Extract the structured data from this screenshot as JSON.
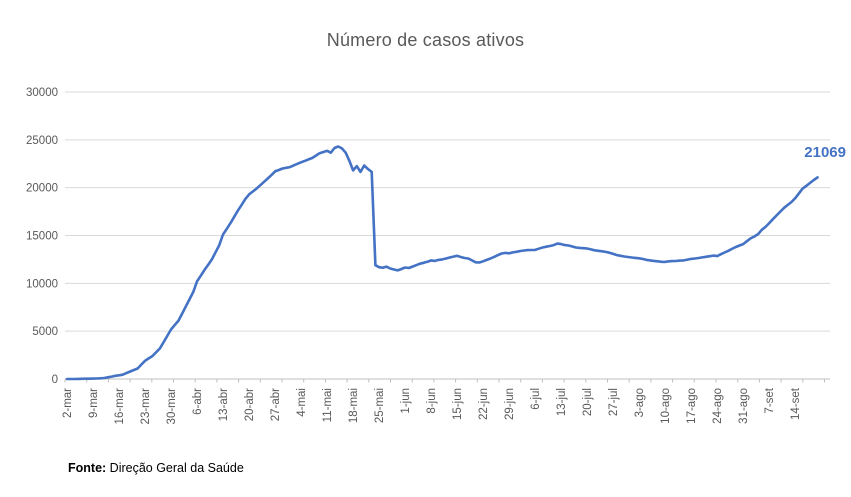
{
  "chart_data": {
    "type": "line",
    "title": "Número de casos ativos",
    "xlabel": "",
    "ylabel": "",
    "legend": "none",
    "grid": "horizontal",
    "ylim": [
      0,
      30000
    ],
    "y_ticks": [
      0,
      5000,
      10000,
      15000,
      20000,
      25000,
      30000
    ],
    "y_tick_labels": [
      "0",
      "5000",
      "10000",
      "15000",
      "20000",
      "25000",
      "30000"
    ],
    "x_tick_labels": [
      "2-mar",
      "9-mar",
      "16-mar",
      "23-mar",
      "30-mar",
      "6-abr",
      "13-abr",
      "20-abr",
      "27-abr",
      "4-mai",
      "11-mai",
      "18-mai",
      "25-mai",
      "1-jun",
      "8-jun",
      "15-jun",
      "22-jun",
      "29-jun",
      "6-jul",
      "13-jul",
      "20-jul",
      "27-jul",
      "3-ago",
      "10-ago",
      "17-ago",
      "24-ago",
      "31-ago",
      "7-set",
      "14-set"
    ],
    "x_label_interval_days": 7,
    "end_label": "21069",
    "colors": {
      "line": "#4472C4",
      "grid": "#D9D9D9",
      "axis": "#BFBFBF",
      "tick_text": "#595959",
      "title_text": "#595959",
      "end_label_text": "#4472C4"
    },
    "series": [
      {
        "name": "Número de casos ativos",
        "start": "2-mar",
        "frequency": "daily",
        "values": [
          2,
          3,
          4,
          10,
          20,
          28,
          35,
          42,
          50,
          75,
          100,
          175,
          250,
          331,
          390,
          450,
          615,
          780,
          940,
          1100,
          1500,
          1900,
          2150,
          2400,
          2800,
          3200,
          3850,
          4500,
          5170,
          5635,
          6100,
          6850,
          7600,
          8350,
          9100,
          10200,
          10800,
          11400,
          11950,
          12500,
          13250,
          14000,
          15100,
          15700,
          16300,
          16950,
          17600,
          18200,
          18800,
          19300,
          19600,
          19900,
          20250,
          20600,
          20950,
          21300,
          21700,
          21850,
          22000,
          22075,
          22150,
          22325,
          22500,
          22650,
          22800,
          22950,
          23100,
          23350,
          23600,
          23725,
          23850,
          23650,
          24150,
          24300,
          24100,
          23650,
          22800,
          21800,
          22250,
          21650,
          22320,
          21950,
          21650,
          11900,
          11690,
          11630,
          11750,
          11550,
          11450,
          11350,
          11500,
          11650,
          11600,
          11750,
          11900,
          12050,
          12150,
          12250,
          12400,
          12350,
          12450,
          12500,
          12600,
          12700,
          12790,
          12880,
          12750,
          12650,
          12600,
          12400,
          12200,
          12180,
          12300,
          12450,
          12600,
          12770,
          12950,
          13120,
          13180,
          13140,
          13230,
          13300,
          13380,
          13430,
          13470,
          13480,
          13490,
          13620,
          13750,
          13830,
          13900,
          14000,
          14150,
          14100,
          14000,
          13950,
          13850,
          13750,
          13700,
          13670,
          13640,
          13550,
          13450,
          13400,
          13350,
          13290,
          13200,
          13080,
          12950,
          12880,
          12800,
          12750,
          12700,
          12660,
          12620,
          12540,
          12450,
          12400,
          12350,
          12300,
          12250,
          12240,
          12300,
          12320,
          12350,
          12380,
          12400,
          12480,
          12550,
          12600,
          12650,
          12710,
          12770,
          12840,
          12900,
          12850,
          13050,
          13220,
          13400,
          13600,
          13800,
          13950,
          14100,
          14400,
          14700,
          14900,
          15150,
          15600,
          15900,
          16300,
          16700,
          17100,
          17500,
          17900,
          18200,
          18500,
          18900,
          19400,
          19900,
          20200,
          20500,
          20800,
          21069
        ]
      }
    ]
  },
  "footer": {
    "label": "Fonte:",
    "text": " Direção Geral da Saúde"
  }
}
